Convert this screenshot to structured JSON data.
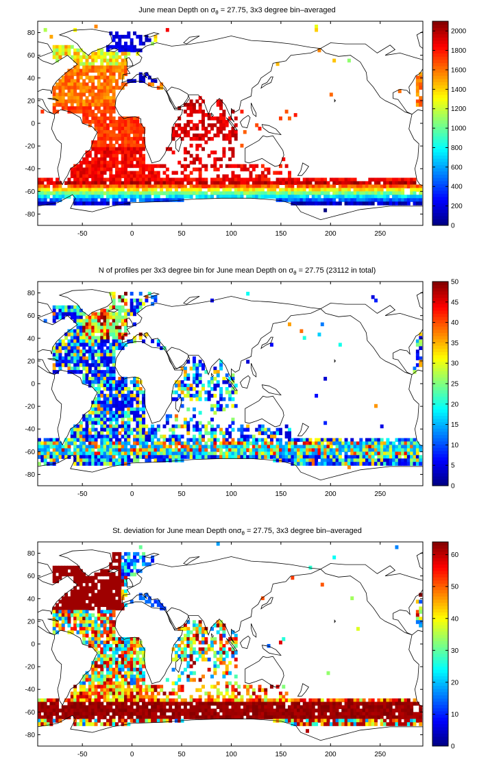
{
  "panels": [
    {
      "title_prefix": "June mean Depth on ",
      "title_suffix": " = 27.75, 3x3 degree bin–averaged",
      "sigma_symbol": "σ",
      "sigma_sub": "θ",
      "colorbar_ticks": [
        "0",
        "200",
        "400",
        "600",
        "800",
        "1000",
        "1200",
        "1400",
        "1600",
        "1800",
        "2000"
      ],
      "colorbar_range": [
        0,
        2100
      ],
      "variable": "mean depth"
    },
    {
      "title_prefix": "N of profiles per 3x3 degree bin for June mean Depth on ",
      "title_suffix": " = 27.75 (23112 in total)",
      "sigma_symbol": "σ",
      "sigma_sub": "θ",
      "colorbar_ticks": [
        "0",
        "5",
        "10",
        "15",
        "20",
        "25",
        "30",
        "35",
        "40",
        "45",
        "50"
      ],
      "colorbar_range": [
        0,
        50
      ],
      "variable": "profile count"
    },
    {
      "title_prefix": "St. deviation for June mean Depth on",
      "title_suffix": " = 27.75, 3x3 degree bin–averaged",
      "sigma_symbol": "σ",
      "sigma_sub": "θ",
      "colorbar_ticks": [
        "0",
        "10",
        "20",
        "30",
        "40",
        "50",
        "60"
      ],
      "colorbar_range": [
        0,
        64
      ],
      "variable": "standard deviation"
    }
  ],
  "axes": {
    "x_ticks": [
      "-50",
      "0",
      "50",
      "100",
      "150",
      "200",
      "250"
    ],
    "y_ticks": [
      "80",
      "60",
      "40",
      "20",
      "0",
      "-20",
      "-40",
      "-60",
      "-80"
    ],
    "x_range": [
      -95,
      293
    ],
    "y_range": [
      -90,
      90
    ]
  },
  "colormap": "jet",
  "colors": {
    "ocean_missing": "#ffffff",
    "coast": "#000000"
  }
}
